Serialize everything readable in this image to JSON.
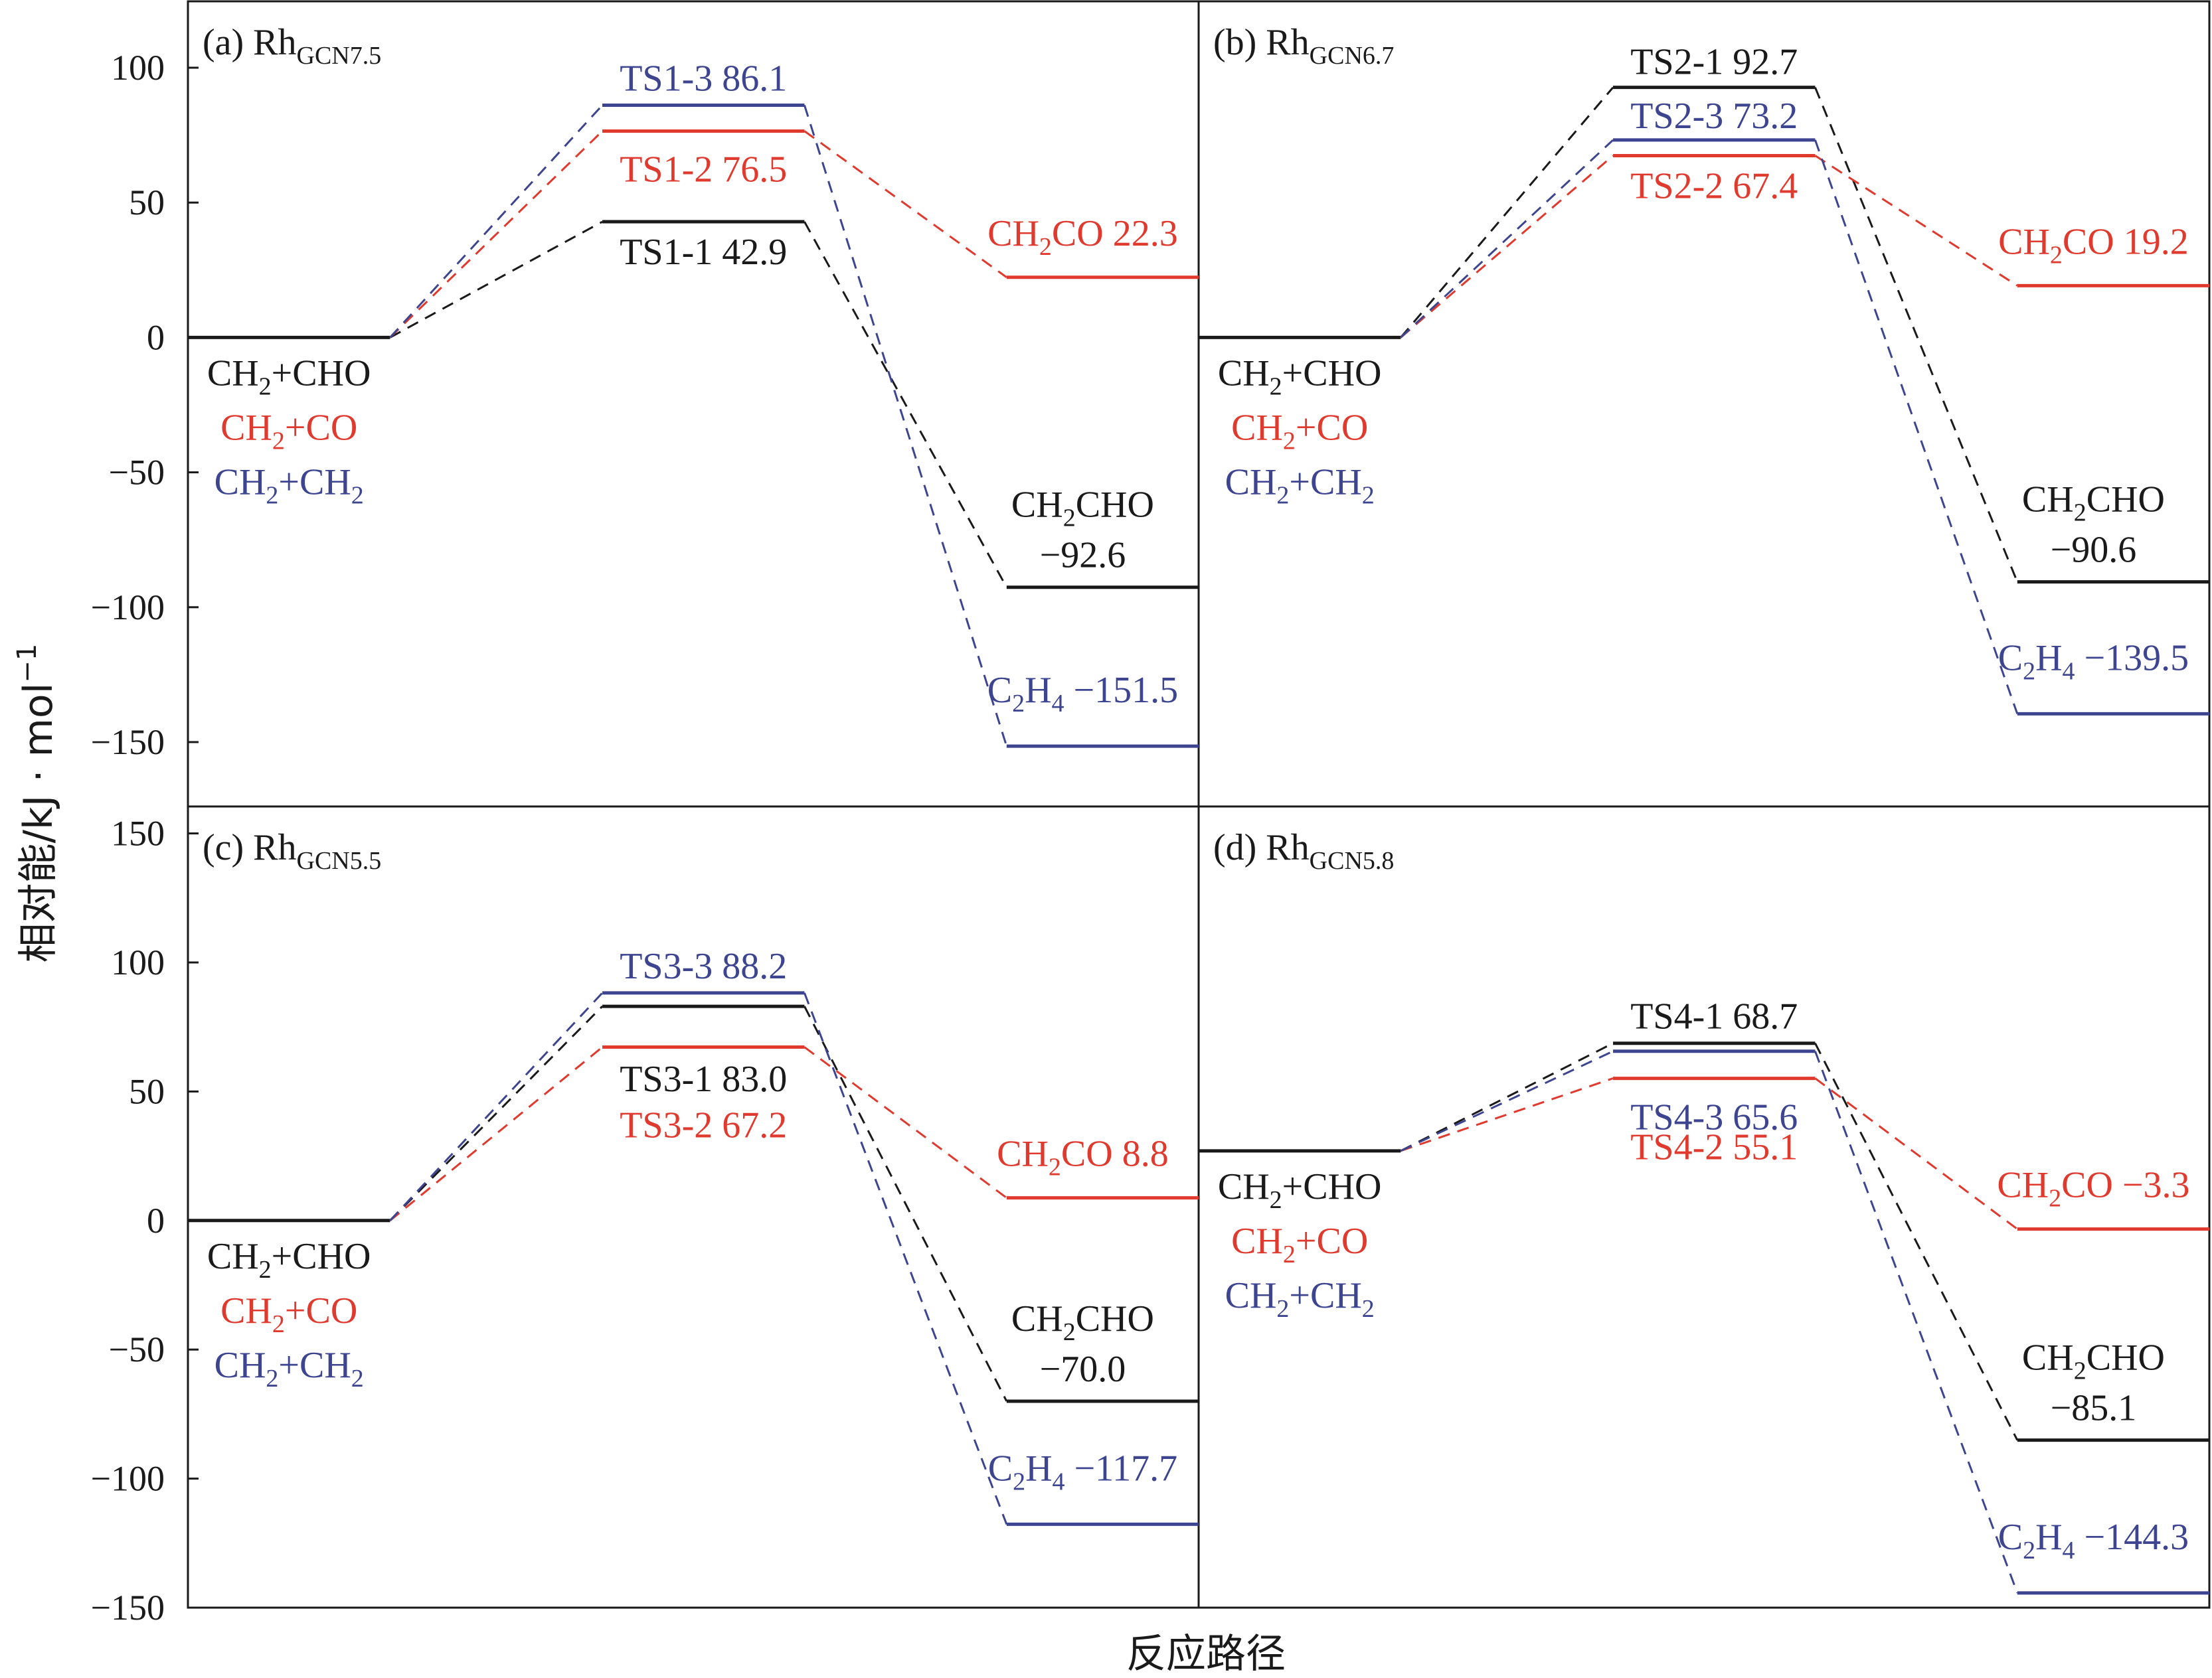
{
  "figure": {
    "ylabel": "相对能/kJ · mol",
    "ylabel_exp": "−1",
    "xlabel": "反应路径"
  },
  "colors": {
    "CHO": "#1a1a1a",
    "CO": "#e03a2f",
    "CH2": "#3d4591"
  },
  "chart_data": [
    {
      "type": "energy-profile",
      "panel": "a",
      "title_prefix": "(a) Rh",
      "title_sub": "GCN7.5",
      "ylim": [
        -175,
        125
      ],
      "yticks": [
        100,
        50,
        0,
        -50,
        -100,
        -150
      ],
      "initial": {
        "value": 0,
        "labels": [
          {
            "main": "CH",
            "sub": "2",
            "rest": "+CHO",
            "series": "CHO"
          },
          {
            "main": "CH",
            "sub": "2",
            "rest": "+CO",
            "series": "CO"
          },
          {
            "main": "CH",
            "sub": "2",
            "rest": "+CH",
            "sub2": "2",
            "series": "CH2"
          }
        ]
      },
      "series": [
        {
          "key": "CHO",
          "ts_label": "TS1-1 42.9",
          "ts": 42.9,
          "product": "CH2CHO",
          "product_value": -92.6,
          "product_label_lines": [
            "CH2CHO",
            "−92.6"
          ]
        },
        {
          "key": "CO",
          "ts_label": "TS1-2  76.5",
          "ts": 76.5,
          "product": "CH2CO",
          "product_value": 22.3,
          "product_label": "CH2CO 22.3"
        },
        {
          "key": "CH2",
          "ts_label": "TS1-3 86.1",
          "ts": 86.1,
          "product": "C2H4",
          "product_value": -151.5,
          "product_label": "C2H4 −151.5"
        }
      ]
    },
    {
      "type": "energy-profile",
      "panel": "b",
      "title_prefix": "(b) Rh",
      "title_sub": "GCN6.7",
      "ylim": [
        -175,
        125
      ],
      "yticks": [
        100,
        50,
        0,
        -50,
        -100,
        -150
      ],
      "initial": {
        "value": 0
      },
      "series": [
        {
          "key": "CHO",
          "ts_label": "TS2-1 92.7",
          "ts": 92.7,
          "product": "CH2CHO",
          "product_value": -90.6,
          "product_label_lines": [
            "CH2CHO",
            "−90.6"
          ]
        },
        {
          "key": "CO",
          "ts_label": "TS2-2  67.4",
          "ts": 67.4,
          "product": "CH2CO",
          "product_value": 19.2,
          "product_label": "CH2CO 19.2"
        },
        {
          "key": "CH2",
          "ts_label": "TS2-3 73.2",
          "ts": 73.2,
          "product": "C2H4",
          "product_value": -139.5,
          "product_label": "C2H4 −139.5"
        }
      ]
    },
    {
      "type": "energy-profile",
      "panel": "c",
      "title_prefix": "(c) Rh",
      "title_sub": "GCN5.5",
      "ylim": [
        -150,
        160
      ],
      "yticks": [
        150,
        100,
        50,
        0,
        -50,
        -100,
        -150
      ],
      "initial": {
        "value": 0
      },
      "series": [
        {
          "key": "CHO",
          "ts_label": "TS3-1 83.0",
          "ts": 83.0,
          "product": "CH2CHO",
          "product_value": -70.0,
          "product_label_lines": [
            "CH2CHO",
            "−70.0"
          ]
        },
        {
          "key": "CO",
          "ts_label": "TS3-2  67.2",
          "ts": 67.2,
          "product": "CH2CO",
          "product_value": 8.8,
          "product_label": "CH2CO 8.8"
        },
        {
          "key": "CH2",
          "ts_label": "TS3-3 88.2",
          "ts": 88.2,
          "product": "C2H4",
          "product_value": -117.7,
          "product_label": "C2H4 −117.7"
        }
      ]
    },
    {
      "type": "energy-profile",
      "panel": "d",
      "title_prefix": "(d) Rh",
      "title_sub": "GCN5.8",
      "ylim": [
        -150,
        160
      ],
      "initial": {
        "value": 27
      },
      "series": [
        {
          "key": "CHO",
          "ts_label": "TS4-1 68.7",
          "ts": 68.7,
          "product": "CH2CHO",
          "product_value": -85.1,
          "product_label_lines": [
            "CH2CHO",
            "−85.1"
          ]
        },
        {
          "key": "CO",
          "ts_label": "TS4-2  55.1",
          "ts": 55.1,
          "product": "CH2CO",
          "product_value": -3.3,
          "product_label": "CH2CO −3.3"
        },
        {
          "key": "CH2",
          "ts_label": "TS4-3 65.6",
          "ts": 65.6,
          "product": "C2H4",
          "product_value": -144.3,
          "product_label": "C2H4 −144.3"
        }
      ]
    }
  ]
}
